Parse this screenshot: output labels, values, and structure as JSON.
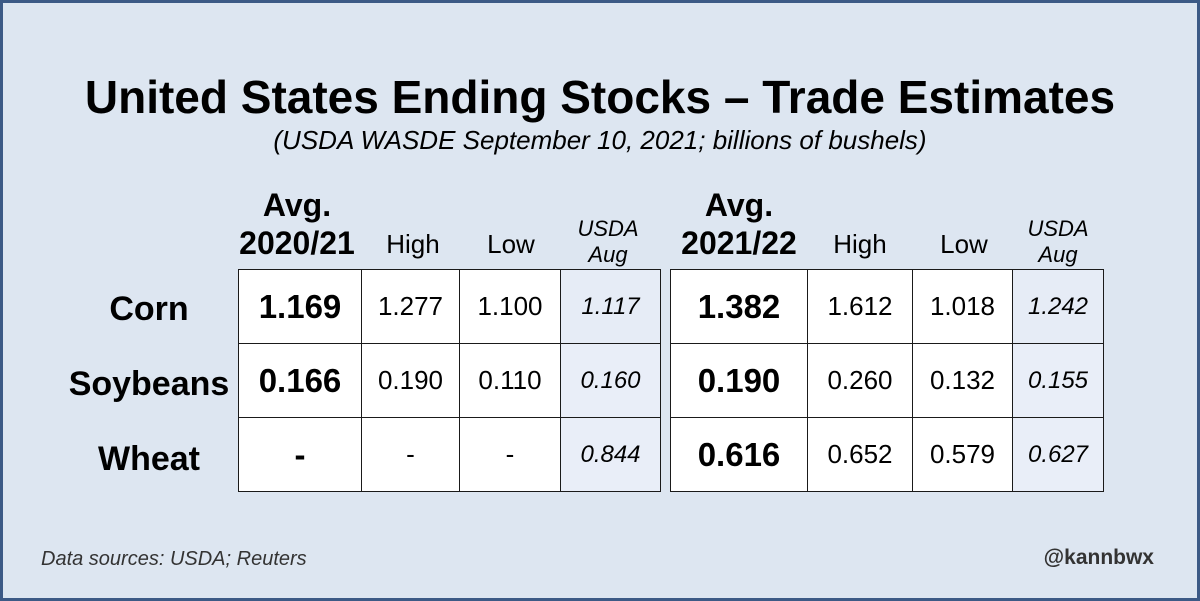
{
  "chart_data": {
    "type": "table",
    "title": "United States Ending Stocks – Trade Estimates",
    "subtitle": "(USDA WASDE September 10, 2021; billions of bushels)",
    "rows": [
      "Corn",
      "Soybeans",
      "Wheat"
    ],
    "tables": [
      {
        "columns": {
          "avg_line1": "Avg.",
          "avg_line2": "2020/21",
          "high": "High",
          "low": "Low",
          "usda_line1": "USDA",
          "usda_line2": "Aug"
        },
        "values": [
          [
            "1.169",
            "1.277",
            "1.100",
            "1.117"
          ],
          [
            "0.166",
            "0.190",
            "0.110",
            "0.160"
          ],
          [
            "-",
            "-",
            "-",
            "0.844"
          ]
        ]
      },
      {
        "columns": {
          "avg_line1": "Avg.",
          "avg_line2": "2021/22",
          "high": "High",
          "low": "Low",
          "usda_line1": "USDA",
          "usda_line2": "Aug"
        },
        "values": [
          [
            "1.382",
            "1.612",
            "1.018",
            "1.242"
          ],
          [
            "0.190",
            "0.260",
            "0.132",
            "0.155"
          ],
          [
            "0.616",
            "0.652",
            "0.579",
            "0.627"
          ]
        ]
      }
    ]
  },
  "footer": {
    "source": "Data sources: USDA; Reuters",
    "handle": "@kannbwx"
  },
  "colors": {
    "background": "#dde6f1",
    "border": "#3c5a86",
    "usda_column": "#e9eef8"
  }
}
